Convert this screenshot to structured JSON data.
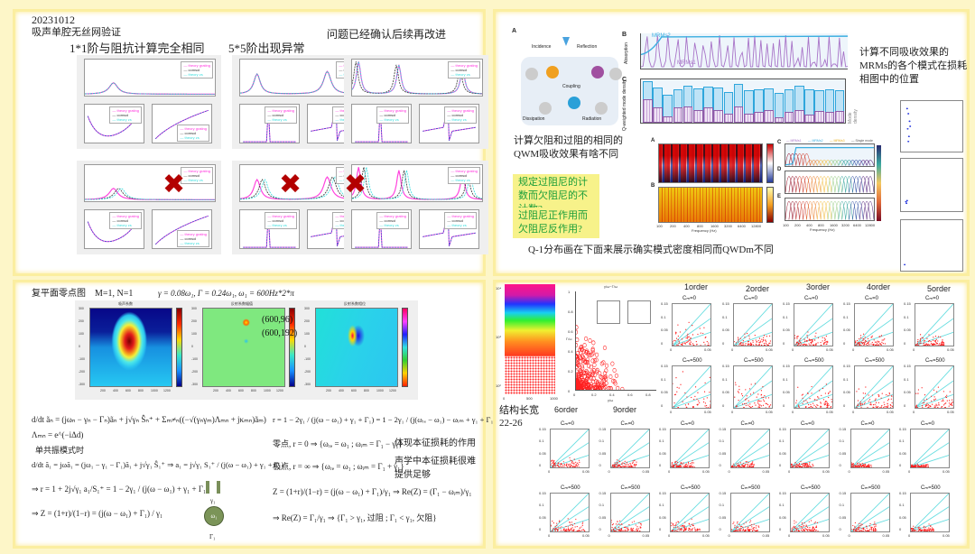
{
  "panel1": {
    "date": "20231012",
    "subtitle": "吸声单腔无丝网验证",
    "note_right": "问题已经确认后续再改进",
    "col_titles": [
      "1*1阶与阻抗计算完全相同",
      "5*5阶出现异常",
      ""
    ],
    "legend": [
      "theory grating",
      "comsol",
      "theory zs"
    ],
    "error_icon": "✖"
  },
  "panel2": {
    "fig_A_labels": {
      "panel": "A",
      "incidence": "Incidence",
      "reflection": "Reflection",
      "coupling": "Coupling",
      "dissipation": "Dissipation",
      "radiation": "Radiation"
    },
    "fig_B": {
      "panel": "B",
      "ylabel": "Absorption",
      "series": [
        "MRMs2",
        "MRMs1"
      ],
      "yticks": [
        "0",
        "0.5",
        "1"
      ]
    },
    "fig_C": {
      "panel": "C",
      "ylabel": "Q-weighted mode density",
      "ylabel_right": "Mode density"
    },
    "note_right": "计算不同吸收效果的MRMs的各个模式在损耗相图中的位置",
    "note_left": "计算欠阻和过阻的相同的QWM吸收效果有啥不同",
    "questions": [
      "规定过阻尼的计数而欠阻尼的不计数?",
      "过阻尼正作用而欠阻尼反作用?"
    ],
    "bottom_note": "Q-1分布画在下面来展示确实模式密度相同而QWDm不同",
    "heatmap_xlabel": "Frequency (Hz)",
    "heatmap_xticks": [
      "100",
      "200",
      "400",
      "800",
      "1600",
      "3200",
      "6400",
      "12800"
    ],
    "heatmap_panels": [
      "A",
      "B"
    ],
    "line_panels": [
      "C",
      "D",
      "E"
    ],
    "line_legend": [
      "MRMs1",
      "MRMs2",
      "MRMs3",
      "Single mode"
    ],
    "colorbar_label": "Mode number"
  },
  "panel3": {
    "title": "复平面零点图",
    "mn": "M=1, N=1",
    "params": "γ = 0.08ω₁, Γ = 0.24ω₁, ω₁ = 600Hz*2*π",
    "maps": [
      {
        "title": "吸声系数"
      },
      {
        "title": "反射系数幅值",
        "annot": [
          "(600,96)",
          "(600,192)"
        ]
      },
      {
        "title": "反射系数相位"
      }
    ],
    "xticks": [
      "200",
      "400",
      "600",
      "800",
      "1000",
      "1200"
    ],
    "yticks": [
      "300",
      "200",
      "100",
      "0",
      "-100",
      "-200",
      "-300"
    ],
    "eq_left": [
      "d/dt ãₙ = (jωₙ − γₙ − Γₙ)ãₙ + j√γₙ Ŝₙ⁺ + Σₘ≠ₙ((−√(γₙγₘ)Λₘₙ + jκₘₙ)ãₘ)",
      "Λₘₙ = e^(−iΔd)",
      "单共振模式时",
      "d/dt ã₁ = jωã₁ = (jω₁ − γ₁ − Γ₁)ã₁ + j√γ₁ Ŝ₁⁺ ⇒ a₁ = j√γ₁ S₁⁺ / (j(ω − ω₁) + γ₁ + Γ₁)",
      "⇒ r = 1 + 2j√γ₁ a₁/S₁⁺ = 1 − 2γ₁ / (j(ω − ω₁) + γ₁ + Γ₁)",
      "⇒ Z = (1+r)/(1−r) = (j(ω − ω₁) + Γ₁) / γ₁"
    ],
    "eq_right": [
      "r = 1 − 2γ₁ / (j(ω − ω₁) + γ₁ + Γ₁) = 1 − 2γ₁ / (j(ωᵣₑ − ω₁) − ωᵢₘ + γ₁ + Γ₁)",
      "零点, r = 0 ⇒ {ωᵣₑ = ω₁ ; ωᵢₘ = Γ₁ − γ₁}",
      "体现本征损耗的作用",
      "极点, r = ∞ ⇒ {ωᵣₑ = ω₁ ; ωᵢₘ = Γ₁ + γ₁}",
      "声学中本征损耗很难提供足够",
      "Z = (1+r)/(1−r) = (j(ω − ω₁) + Γ₁)/γ₁ ⇒ Re(Z) = (Γ₁ − ωᵢₘ)/γ₁",
      "⇒ Re(Z) = Γ₁/γ₁ ⇒ {Γ₁ > γ₁, 过阻 ; Γ₁ < γ₁, 欠阻}"
    ],
    "mode_diagram": {
      "node": "ω₁",
      "top": "γ₁",
      "bottom": "Γ₁"
    }
  },
  "panel4": {
    "struct_note": "结构长宽",
    "struct_range": "22-26",
    "row1_orders": [
      "1order",
      "2order",
      "3order",
      "4order",
      "5order"
    ],
    "row2_orders": [
      "6order",
      "9order"
    ],
    "cm_labels": [
      "Cₘ=0",
      "Cₘ=500"
    ],
    "yticks": [
      "0.15",
      "0.1",
      "0.05",
      "0"
    ],
    "xticks": [
      "0",
      "0.05"
    ],
    "xlabel": "γ/ω",
    "ylabel": "Γ/ω",
    "big_scatter": {
      "title": "γ/ω−Γ/ω",
      "xticks": [
        "0",
        "0.2",
        "0.4",
        "0.6",
        "0.8"
      ],
      "yticks": [
        "0",
        "0.2",
        "0.4",
        "0.6",
        "0.8",
        "1"
      ]
    },
    "density_xticks": [
      "0",
      "500",
      "1000"
    ],
    "density_yticks": [
      "10⁴",
      "10³",
      "10²"
    ]
  }
}
